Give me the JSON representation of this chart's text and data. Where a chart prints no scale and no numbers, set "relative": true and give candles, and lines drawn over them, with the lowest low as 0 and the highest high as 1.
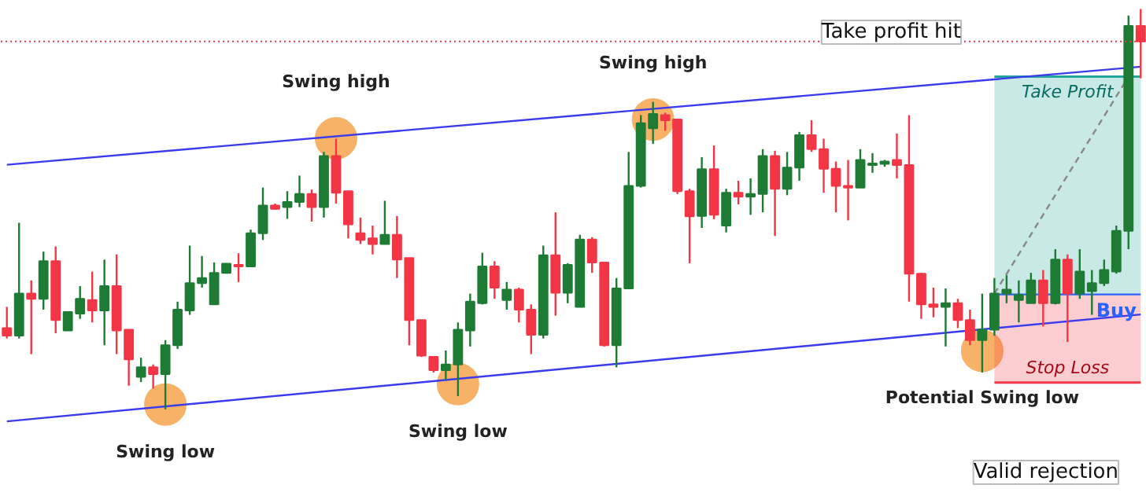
{
  "chart_data": {
    "type": "candlestick",
    "relative": true,
    "tick_labels": false,
    "grid": false,
    "categories": [
      null,
      null,
      null,
      null,
      null,
      null,
      null,
      null,
      null,
      null,
      null,
      null,
      null,
      null,
      null,
      null,
      null,
      null,
      null,
      null,
      null,
      null,
      null,
      null,
      null,
      null,
      null,
      null,
      null,
      null,
      null,
      null,
      null,
      null,
      null,
      null,
      null,
      null,
      null,
      null,
      null,
      null,
      null,
      null,
      null,
      null,
      null,
      null,
      null,
      null,
      null,
      null,
      null,
      null,
      null,
      null,
      null,
      null,
      null,
      null,
      null,
      null,
      null,
      null,
      null,
      null,
      null,
      null,
      null,
      null,
      null,
      null,
      null,
      null,
      null,
      null,
      null,
      null,
      null,
      null,
      null,
      null,
      null,
      null,
      null,
      null,
      null,
      null,
      null,
      null,
      null,
      null,
      null,
      null
    ],
    "ohlc": [
      [
        0.203,
        0.256,
        0.177,
        0.184
      ],
      [
        0.184,
        0.466,
        0.177,
        0.289
      ],
      [
        0.289,
        0.322,
        0.138,
        0.276
      ],
      [
        0.276,
        0.394,
        0.249,
        0.37
      ],
      [
        0.37,
        0.407,
        0.19,
        0.223
      ],
      [
        0.197,
        0.243,
        0.197,
        0.243
      ],
      [
        0.239,
        0.308,
        0.226,
        0.276
      ],
      [
        0.273,
        0.344,
        0.217,
        0.247
      ],
      [
        0.247,
        0.374,
        0.16,
        0.308
      ],
      [
        0.308,
        0.387,
        0.138,
        0.197
      ],
      [
        0.199,
        0.199,
        0.059,
        0.125
      ],
      [
        0.081,
        0.129,
        0.068,
        0.105
      ],
      [
        0.105,
        0.112,
        0.052,
        0.088
      ],
      [
        0.088,
        0.173,
        0.0,
        0.16
      ],
      [
        0.16,
        0.269,
        0.151,
        0.249
      ],
      [
        0.247,
        0.409,
        0.236,
        0.315
      ],
      [
        0.315,
        0.383,
        0.304,
        0.328
      ],
      [
        0.262,
        0.367,
        0.262,
        0.341
      ],
      [
        0.341,
        0.365,
        0.339,
        0.364
      ],
      [
        0.361,
        0.39,
        0.318,
        0.357
      ],
      [
        0.357,
        0.449,
        0.357,
        0.44
      ],
      [
        0.44,
        0.554,
        0.423,
        0.509
      ],
      [
        0.509,
        0.514,
        0.499,
        0.501
      ],
      [
        0.505,
        0.545,
        0.476,
        0.518
      ],
      [
        0.518,
        0.584,
        0.505,
        0.538
      ],
      [
        0.538,
        0.549,
        0.469,
        0.505
      ],
      [
        0.505,
        0.643,
        0.479,
        0.633
      ],
      [
        0.633,
        0.676,
        0.514,
        0.541
      ],
      [
        0.545,
        0.545,
        0.427,
        0.462
      ],
      [
        0.44,
        0.479,
        0.413,
        0.423
      ],
      [
        0.427,
        0.459,
        0.387,
        0.413
      ],
      [
        0.413,
        0.521,
        0.413,
        0.436
      ],
      [
        0.436,
        0.483,
        0.328,
        0.374
      ],
      [
        0.378,
        0.378,
        0.16,
        0.223
      ],
      [
        0.223,
        0.223,
        0.131,
        0.134
      ],
      [
        0.131,
        0.131,
        0.092,
        0.098
      ],
      [
        0.098,
        0.147,
        0.072,
        0.112
      ],
      [
        0.112,
        0.217,
        0.033,
        0.199
      ],
      [
        0.197,
        0.289,
        0.157,
        0.269
      ],
      [
        0.265,
        0.391,
        0.262,
        0.357
      ],
      [
        0.357,
        0.37,
        0.276,
        0.304
      ],
      [
        0.273,
        0.318,
        0.249,
        0.299
      ],
      [
        0.299,
        0.304,
        0.217,
        0.249
      ],
      [
        0.249,
        0.262,
        0.138,
        0.186
      ],
      [
        0.186,
        0.409,
        0.177,
        0.385
      ],
      [
        0.385,
        0.492,
        0.234,
        0.291
      ],
      [
        0.291,
        0.365,
        0.265,
        0.361
      ],
      [
        0.256,
        0.436,
        0.256,
        0.424
      ],
      [
        0.424,
        0.43,
        0.341,
        0.367
      ],
      [
        0.367,
        0.367,
        0.157,
        0.16
      ],
      [
        0.16,
        0.328,
        0.105,
        0.302
      ],
      [
        0.302,
        0.643,
        0.302,
        0.558
      ],
      [
        0.558,
        0.735,
        0.554,
        0.715
      ],
      [
        0.702,
        0.768,
        0.663,
        0.738
      ],
      [
        0.735,
        0.741,
        0.696,
        0.722
      ],
      [
        0.724,
        0.724,
        0.538,
        0.545
      ],
      [
        0.545,
        0.551,
        0.365,
        0.482
      ],
      [
        0.483,
        0.63,
        0.453,
        0.6
      ],
      [
        0.6,
        0.659,
        0.475,
        0.486
      ],
      [
        0.459,
        0.551,
        0.442,
        0.541
      ],
      [
        0.541,
        0.571,
        0.512,
        0.531
      ],
      [
        0.531,
        0.577,
        0.486,
        0.538
      ],
      [
        0.538,
        0.65,
        0.492,
        0.633
      ],
      [
        0.633,
        0.646,
        0.433,
        0.551
      ],
      [
        0.551,
        0.643,
        0.535,
        0.604
      ],
      [
        0.604,
        0.693,
        0.571,
        0.685
      ],
      [
        0.685,
        0.722,
        0.643,
        0.65
      ],
      [
        0.65,
        0.676,
        0.541,
        0.601
      ],
      [
        0.601,
        0.619,
        0.492,
        0.558
      ],
      [
        0.558,
        0.623,
        0.472,
        0.558
      ],
      [
        0.554,
        0.65,
        0.554,
        0.623
      ],
      [
        0.61,
        0.64,
        0.591,
        0.614
      ],
      [
        0.613,
        0.623,
        0.606,
        0.619
      ],
      [
        0.623,
        0.689,
        0.577,
        0.61
      ],
      [
        0.61,
        0.735,
        0.269,
        0.339
      ],
      [
        0.339,
        0.341,
        0.226,
        0.262
      ],
      [
        0.262,
        0.304,
        0.23,
        0.256
      ],
      [
        0.256,
        0.302,
        0.157,
        0.265
      ],
      [
        0.265,
        0.276,
        0.203,
        0.223
      ],
      [
        0.223,
        0.249,
        0.16,
        0.173
      ],
      [
        0.173,
        0.289,
        0.092,
        0.199
      ],
      [
        0.199,
        0.328,
        0.184,
        0.289
      ],
      [
        0.289,
        0.335,
        0.265,
        0.299
      ],
      [
        0.273,
        0.322,
        0.217,
        0.286
      ],
      [
        0.265,
        0.341,
        0.265,
        0.322
      ],
      [
        0.322,
        0.348,
        0.207,
        0.265
      ],
      [
        0.265,
        0.4,
        0.262,
        0.374
      ],
      [
        0.374,
        0.387,
        0.168,
        0.289
      ],
      [
        0.289,
        0.4,
        0.276,
        0.344
      ],
      [
        0.295,
        0.348,
        0.236,
        0.315
      ],
      [
        0.315,
        0.374,
        0.308,
        0.348
      ],
      [
        0.344,
        0.459,
        0.339,
        0.446
      ],
      [
        0.446,
        0.984,
        0.4,
        0.958
      ],
      [
        0.958,
        1.0,
        0.827,
        0.919
      ]
    ],
    "colors": [
      "#f23645",
      "#1e7b34",
      "#f23645",
      "#1e7b34",
      "#f23645",
      "#1e7b34",
      "#1e7b34",
      "#f23645",
      "#1e7b34",
      "#f23645",
      "#f23645",
      "#1e7b34",
      "#f23645",
      "#1e7b34",
      "#1e7b34",
      "#1e7b34",
      "#1e7b34",
      "#1e7b34",
      "#1e7b34",
      "#f23645",
      "#1e7b34",
      "#1e7b34",
      "#f23645",
      "#1e7b34",
      "#1e7b34",
      "#f23645",
      "#1e7b34",
      "#f23645",
      "#f23645",
      "#f23645",
      "#f23645",
      "#1e7b34",
      "#f23645",
      "#f23645",
      "#f23645",
      "#f23645",
      "#1e7b34",
      "#1e7b34",
      "#1e7b34",
      "#1e7b34",
      "#f23645",
      "#1e7b34",
      "#f23645",
      "#f23645",
      "#1e7b34",
      "#f23645",
      "#1e7b34",
      "#1e7b34",
      "#f23645",
      "#f23645",
      "#1e7b34",
      "#1e7b34",
      "#1e7b34",
      "#1e7b34",
      "#f23645",
      "#f23645",
      "#f23645",
      "#1e7b34",
      "#f23645",
      "#1e7b34",
      "#f23645",
      "#1e7b34",
      "#1e7b34",
      "#f23645",
      "#1e7b34",
      "#1e7b34",
      "#f23645",
      "#f23645",
      "#f23645",
      "#f23645",
      "#1e7b34",
      "#1e7b34",
      "#1e7b34",
      "#f23645",
      "#f23645",
      "#f23645",
      "#f23645",
      "#1e7b34",
      "#f23645",
      "#f23645",
      "#1e7b34",
      "#1e7b34",
      "#1e7b34",
      "#1e7b34",
      "#1e7b34",
      "#f23645",
      "#1e7b34",
      "#f23645",
      "#1e7b34",
      "#1e7b34",
      "#1e7b34",
      "#1e7b34",
      "#1e7b34",
      "#f23645"
    ],
    "series": [
      {
        "type": "line",
        "name": "Take Profit",
        "color": "#26a69a",
        "values": [
          null,
          null,
          null,
          null,
          null,
          null,
          null,
          null,
          null,
          null,
          null,
          null,
          null,
          null,
          null,
          null,
          null,
          null,
          null,
          null,
          null,
          null,
          null,
          null,
          null,
          null,
          null,
          null,
          null,
          null,
          null,
          null,
          null,
          null,
          null,
          null,
          null,
          null,
          null,
          null,
          null,
          null,
          null,
          null,
          null,
          null,
          null,
          null,
          null,
          null,
          null,
          null,
          null,
          null,
          null,
          null,
          null,
          null,
          null,
          null,
          null,
          null,
          null,
          null,
          null,
          null,
          null,
          null,
          null,
          null,
          null,
          null,
          null,
          null,
          null,
          null,
          null,
          null,
          null,
          null,
          null,
          0.831,
          null,
          null,
          null,
          null,
          null,
          null,
          null,
          null,
          null,
          null,
          null,
          0.831
        ],
        "upper": [
          null,
          null,
          null,
          null,
          null,
          null,
          null,
          null,
          null,
          null,
          null,
          null,
          null,
          null,
          null,
          null,
          null,
          null,
          null,
          null,
          null,
          null,
          null,
          null,
          null,
          null,
          null,
          null,
          null,
          null,
          null,
          null,
          null,
          null,
          null,
          null,
          null,
          null,
          null,
          null,
          null,
          null,
          null,
          null,
          null,
          null,
          null,
          null,
          null,
          null,
          null,
          null,
          null,
          null,
          null,
          null,
          null,
          null,
          null,
          null,
          null,
          null,
          null,
          null,
          null,
          null,
          null,
          null,
          null,
          null,
          null,
          null,
          null,
          null,
          null,
          null,
          null,
          null,
          null,
          null,
          null,
          0.831,
          null,
          null,
          null,
          null,
          null,
          null,
          null,
          null,
          null,
          null,
          null,
          0.831
        ],
        "lower": [
          null,
          null,
          null,
          null,
          null,
          null,
          null,
          null,
          null,
          null,
          null,
          null,
          null,
          null,
          null,
          null,
          null,
          null,
          null,
          null,
          null,
          null,
          null,
          null,
          null,
          null,
          null,
          null,
          null,
          null,
          null,
          null,
          null,
          null,
          null,
          null,
          null,
          null,
          null,
          null,
          null,
          null,
          null,
          null,
          null,
          null,
          null,
          null,
          null,
          null,
          null,
          null,
          null,
          null,
          null,
          null,
          null,
          null,
          null,
          null,
          null,
          null,
          null,
          null,
          null,
          null,
          null,
          null,
          null,
          null,
          null,
          null,
          null,
          null,
          null,
          null,
          null,
          null,
          null,
          null,
          null,
          0.287,
          null,
          null,
          null,
          null,
          null,
          null,
          null,
          null,
          null,
          null,
          null,
          0.287
        ]
      },
      {
        "type": "line",
        "name": "Stop Loss",
        "color": "#f23645",
        "upper": [
          null,
          null,
          null,
          null,
          null,
          null,
          null,
          null,
          null,
          null,
          null,
          null,
          null,
          null,
          null,
          null,
          null,
          null,
          null,
          null,
          null,
          null,
          null,
          null,
          null,
          null,
          null,
          null,
          null,
          null,
          null,
          null,
          null,
          null,
          null,
          null,
          null,
          null,
          null,
          null,
          null,
          null,
          null,
          null,
          null,
          null,
          null,
          null,
          null,
          null,
          null,
          null,
          null,
          null,
          null,
          null,
          null,
          null,
          null,
          null,
          null,
          null,
          null,
          null,
          null,
          null,
          null,
          null,
          null,
          null,
          null,
          null,
          null,
          null,
          null,
          null,
          null,
          null,
          null,
          null,
          null,
          0.287,
          null,
          null,
          null,
          null,
          null,
          null,
          null,
          null,
          null,
          null,
          null,
          0.287
        ],
        "values": [
          null,
          null,
          null,
          null,
          null,
          null,
          null,
          null,
          null,
          null,
          null,
          null,
          null,
          null,
          null,
          null,
          null,
          null,
          null,
          null,
          null,
          null,
          null,
          null,
          null,
          null,
          null,
          null,
          null,
          null,
          null,
          null,
          null,
          null,
          null,
          null,
          null,
          null,
          null,
          null,
          null,
          null,
          null,
          null,
          null,
          null,
          null,
          null,
          null,
          null,
          null,
          null,
          null,
          null,
          null,
          null,
          null,
          null,
          null,
          null,
          null,
          null,
          null,
          null,
          null,
          null,
          null,
          null,
          null,
          null,
          null,
          null,
          null,
          null,
          null,
          null,
          null,
          null,
          null,
          null,
          null,
          0.067,
          null,
          null,
          null,
          null,
          null,
          null,
          null,
          null,
          null,
          null,
          null,
          0.067
        ],
        "lower": [
          null,
          null,
          null,
          null,
          null,
          null,
          null,
          null,
          null,
          null,
          null,
          null,
          null,
          null,
          null,
          null,
          null,
          null,
          null,
          null,
          null,
          null,
          null,
          null,
          null,
          null,
          null,
          null,
          null,
          null,
          null,
          null,
          null,
          null,
          null,
          null,
          null,
          null,
          null,
          null,
          null,
          null,
          null,
          null,
          null,
          null,
          null,
          null,
          null,
          null,
          null,
          null,
          null,
          null,
          null,
          null,
          null,
          null,
          null,
          null,
          null,
          null,
          null,
          null,
          null,
          null,
          null,
          null,
          null,
          null,
          null,
          null,
          null,
          null,
          null,
          null,
          null,
          null,
          null,
          null,
          null,
          0.067,
          null,
          null,
          null,
          null,
          null,
          null,
          null,
          null,
          null,
          null,
          null,
          0.067
        ]
      },
      {
        "type": "line",
        "name": "Buy",
        "color": "#2962ff",
        "values": [
          null,
          null,
          null,
          null,
          null,
          null,
          null,
          null,
          null,
          null,
          null,
          null,
          null,
          null,
          null,
          null,
          null,
          null,
          null,
          null,
          null,
          null,
          null,
          null,
          null,
          null,
          null,
          null,
          null,
          null,
          null,
          null,
          null,
          null,
          null,
          null,
          null,
          null,
          null,
          null,
          null,
          null,
          null,
          null,
          null,
          null,
          null,
          null,
          null,
          null,
          null,
          null,
          null,
          null,
          null,
          null,
          null,
          null,
          null,
          null,
          null,
          null,
          null,
          null,
          null,
          null,
          null,
          null,
          null,
          null,
          null,
          null,
          null,
          null,
          null,
          null,
          null,
          null,
          null,
          null,
          null,
          0.287,
          null,
          null,
          null,
          null,
          null,
          null,
          null,
          null,
          null,
          null,
          null,
          0.287
        ]
      },
      {
        "type": "line",
        "color": "#3a3aee",
        "values": [
          0.611,
          null,
          null,
          null,
          null,
          null,
          null,
          null,
          null,
          null,
          null,
          null,
          null,
          null,
          null,
          null,
          null,
          null,
          null,
          null,
          null,
          null,
          null,
          null,
          null,
          null,
          null,
          null,
          null,
          null,
          null,
          null,
          null,
          null,
          null,
          null,
          null,
          null,
          null,
          null,
          null,
          null,
          null,
          null,
          null,
          null,
          null,
          null,
          null,
          null,
          null,
          null,
          null,
          null,
          null,
          null,
          null,
          null,
          null,
          null,
          null,
          null,
          null,
          null,
          null,
          null,
          null,
          null,
          null,
          null,
          null,
          null,
          null,
          null,
          null,
          null,
          null,
          null,
          null,
          null,
          null,
          null,
          null,
          null,
          null,
          null,
          null,
          null,
          null,
          null,
          null,
          null,
          null,
          0.856
        ]
      },
      {
        "type": "line",
        "color": "#3a3aee",
        "values": [
          -0.03,
          null,
          null,
          null,
          null,
          null,
          null,
          null,
          null,
          null,
          null,
          null,
          null,
          null,
          null,
          null,
          null,
          null,
          null,
          null,
          null,
          null,
          null,
          null,
          null,
          null,
          null,
          null,
          null,
          null,
          null,
          null,
          null,
          null,
          null,
          null,
          null,
          null,
          null,
          null,
          null,
          null,
          null,
          null,
          null,
          null,
          null,
          null,
          null,
          null,
          null,
          null,
          null,
          null,
          null,
          null,
          null,
          null,
          null,
          null,
          null,
          null,
          null,
          null,
          null,
          null,
          null,
          null,
          null,
          null,
          null,
          null,
          null,
          null,
          null,
          null,
          null,
          null,
          null,
          null,
          null,
          null,
          null,
          null,
          null,
          null,
          null,
          null,
          null,
          null,
          null,
          null,
          null,
          0.237
        ]
      },
      {
        "type": "line",
        "color": "#888888",
        "line_style": "dashed",
        "values": [
          null,
          null,
          null,
          null,
          null,
          null,
          null,
          null,
          null,
          null,
          null,
          null,
          null,
          null,
          null,
          null,
          null,
          null,
          null,
          null,
          null,
          null,
          null,
          null,
          null,
          null,
          null,
          null,
          null,
          null,
          null,
          null,
          null,
          null,
          null,
          null,
          null,
          null,
          null,
          null,
          null,
          null,
          null,
          null,
          null,
          null,
          null,
          null,
          null,
          null,
          null,
          null,
          null,
          null,
          null,
          null,
          null,
          null,
          null,
          null,
          null,
          null,
          null,
          null,
          null,
          null,
          null,
          null,
          null,
          null,
          null,
          null,
          null,
          null,
          null,
          null,
          null,
          null,
          null,
          null,
          null,
          0.289,
          null,
          null,
          null,
          null,
          null,
          null,
          null,
          null,
          null,
          null,
          0.831,
          null
        ]
      },
      {
        "type": "scatter",
        "marker": "circle",
        "color": "#f7b267",
        "values": [
          null,
          null,
          null,
          null,
          null,
          null,
          null,
          null,
          null,
          null,
          null,
          null,
          null,
          0.012,
          null,
          null,
          null,
          null,
          null,
          null,
          null,
          null,
          null,
          null,
          null,
          null,
          null,
          0.677,
          null,
          null,
          null,
          null,
          null,
          null,
          null,
          null,
          null,
          0.063,
          null,
          null,
          null,
          null,
          null,
          null,
          null,
          null,
          null,
          null,
          null,
          null,
          null,
          null,
          null,
          0.724,
          null,
          null,
          null,
          null,
          null,
          null,
          null,
          null,
          null,
          null,
          null,
          null,
          null,
          null,
          null,
          null,
          null,
          null,
          null,
          null,
          null,
          null,
          null,
          null,
          null,
          null,
          0.146,
          null,
          null,
          null,
          null,
          null,
          null,
          null,
          null,
          null,
          null,
          null,
          null,
          null
        ]
      }
    ],
    "ref_lines": [
      {
        "axis": "y",
        "value": 0.919,
        "color": "#f23645",
        "line_style": "dotted"
      }
    ],
    "annotations": [
      "Swing low",
      "Swing high",
      "Swing low",
      "Swing high",
      "Potential Swing low",
      "Take profit hit",
      "Valid rejection"
    ]
  }
}
